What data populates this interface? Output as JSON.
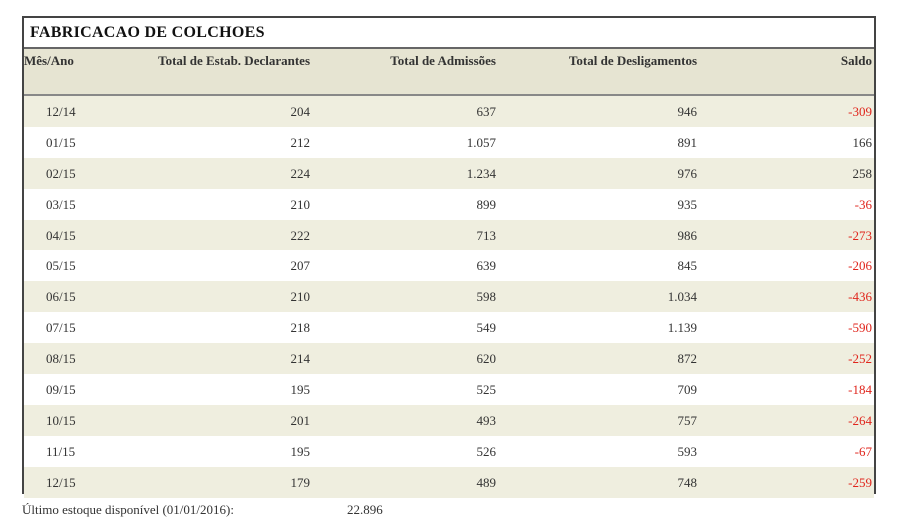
{
  "title": "FABRICACAO DE COLCHOES",
  "columns": [
    "Mês/Ano",
    "Total de Estab. Declarantes",
    "Total de Admissões",
    "Total de Desligamentos",
    "Saldo"
  ],
  "rows": [
    {
      "mes": "12/14",
      "estab": "204",
      "adm": "637",
      "desl": "946",
      "saldo": "-309"
    },
    {
      "mes": "01/15",
      "estab": "212",
      "adm": "1.057",
      "desl": "891",
      "saldo": "166"
    },
    {
      "mes": "02/15",
      "estab": "224",
      "adm": "1.234",
      "desl": "976",
      "saldo": "258"
    },
    {
      "mes": "03/15",
      "estab": "210",
      "adm": "899",
      "desl": "935",
      "saldo": "-36"
    },
    {
      "mes": "04/15",
      "estab": "222",
      "adm": "713",
      "desl": "986",
      "saldo": "-273"
    },
    {
      "mes": "05/15",
      "estab": "207",
      "adm": "639",
      "desl": "845",
      "saldo": "-206"
    },
    {
      "mes": "06/15",
      "estab": "210",
      "adm": "598",
      "desl": "1.034",
      "saldo": "-436"
    },
    {
      "mes": "07/15",
      "estab": "218",
      "adm": "549",
      "desl": "1.139",
      "saldo": "-590"
    },
    {
      "mes": "08/15",
      "estab": "214",
      "adm": "620",
      "desl": "872",
      "saldo": "-252"
    },
    {
      "mes": "09/15",
      "estab": "195",
      "adm": "525",
      "desl": "709",
      "saldo": "-184"
    },
    {
      "mes": "10/15",
      "estab": "201",
      "adm": "493",
      "desl": "757",
      "saldo": "-264"
    },
    {
      "mes": "11/15",
      "estab": "195",
      "adm": "526",
      "desl": "593",
      "saldo": "-67"
    },
    {
      "mes": "12/15",
      "estab": "179",
      "adm": "489",
      "desl": "748",
      "saldo": "-259"
    }
  ],
  "footer": {
    "label": "Último estoque disponível (01/01/2016):",
    "value": "22.896"
  },
  "colors": {
    "negative": "#e0251c",
    "row_alt": "#efeedf",
    "header_bg": "#e6e4d2"
  }
}
